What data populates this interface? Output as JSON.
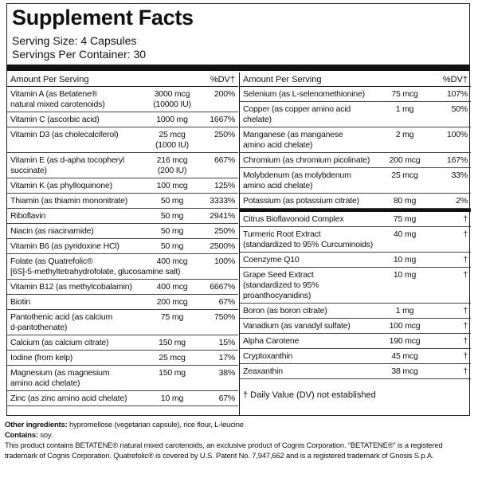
{
  "title": "Supplement Facts",
  "serving_size": "Serving Size: 4 Capsules",
  "servings_per_container": "Servings Per Container: 30",
  "left": {
    "header": [
      "Amount Per Serving",
      "%DV†"
    ],
    "rows": [
      {
        "name": [
          "Vitamin A (as Betatene®",
          "natural mixed carotenoids)"
        ],
        "amount": [
          "3000 mcg",
          "(10000 IU)"
        ],
        "dv": "200%"
      },
      {
        "name": [
          "Vitamin C (ascorbic acid)"
        ],
        "amount": [
          "1000 mg"
        ],
        "dv": "1667%"
      },
      {
        "name": [
          "Vitamin D3 (as cholecalciferol)"
        ],
        "amount": [
          "25 mcg",
          "(1000 IU)"
        ],
        "dv": "250%"
      },
      {
        "name": [
          "Vitamin E (as d-apha tocopheryl",
          "succinate)"
        ],
        "amount": [
          "216 mcg",
          "(200 IU)"
        ],
        "dv": "667%"
      },
      {
        "name": [
          "Vitamin K (as phylloquinone)"
        ],
        "amount": [
          "100 mcg"
        ],
        "dv": "125%"
      },
      {
        "name": [
          "Thiamin (as thiamin mononitrate)"
        ],
        "amount": [
          "50 mg"
        ],
        "dv": "3333%"
      },
      {
        "name": [
          "Riboflavin"
        ],
        "amount": [
          "50 mg"
        ],
        "dv": "2941%"
      },
      {
        "name": [
          "Niacin (as niacinamide)"
        ],
        "amount": [
          "50 mg"
        ],
        "dv": "250%"
      },
      {
        "name": [
          "Vitamin B6 (as pyridoxine HCl)"
        ],
        "amount": [
          "50 mg"
        ],
        "dv": "2500%"
      },
      {
        "name": [
          "Folate (as Quatrefolic®"
        ],
        "amount": [
          "400 mcg"
        ],
        "dv": "100%",
        "note": "[6S]-5-methyltetrahydrofolate, glucosamine salt)"
      },
      {
        "name": [
          "Vitamin B12 (as methylcobalamin)"
        ],
        "amount": [
          "400 mcg"
        ],
        "dv": "6667%"
      },
      {
        "name": [
          "Biotin"
        ],
        "amount": [
          "200 mcg"
        ],
        "dv": "67%"
      },
      {
        "name": [
          "Pantothenic acid (as calcium",
          "d-pantothenate)"
        ],
        "amount": [
          "75 mg"
        ],
        "dv": "750%"
      },
      {
        "name": [
          "Calcium (as calcium citrate)"
        ],
        "amount": [
          "150 mg"
        ],
        "dv": "15%"
      },
      {
        "name": [
          "Iodine (from kelp)"
        ],
        "amount": [
          "25 mcg"
        ],
        "dv": "17%"
      },
      {
        "name": [
          "Magnesium (as magnesium",
          "amino acid chelate)"
        ],
        "amount": [
          "150 mg"
        ],
        "dv": "38%"
      },
      {
        "name": [
          "Zinc (as zinc amino acid chelate)"
        ],
        "amount": [
          "10 mg"
        ],
        "dv": "67%"
      }
    ]
  },
  "right": {
    "header": [
      "Amount Per Serving",
      "%DV†"
    ],
    "rows": [
      {
        "name": [
          "Selenium (as L-selenomethionine)"
        ],
        "amount": [
          "75 mcg"
        ],
        "dv": "107%"
      },
      {
        "name": [
          "Copper (as copper amino acid chelate)"
        ],
        "amount": [
          "1 mg"
        ],
        "dv": "50%"
      },
      {
        "name": [
          "Manganese (as manganese",
          "amino acid chelate)"
        ],
        "amount": [
          "2 mg"
        ],
        "dv": "100%"
      },
      {
        "name": [
          "Chromium (as chromium picolinate)"
        ],
        "amount": [
          "200 mcg"
        ],
        "dv": "167%"
      },
      {
        "name": [
          "Molybdenum (as molybdenum",
          "amino acid chelate)"
        ],
        "amount": [
          "25 mcg"
        ],
        "dv": "33%"
      },
      {
        "name": [
          "Potassium (as potassium citrate)"
        ],
        "amount": [
          "80 mg"
        ],
        "dv": "2%"
      }
    ],
    "other_rows": [
      {
        "name": [
          "Citrus Bioflavonoid Complex"
        ],
        "amount": [
          "75 mg"
        ],
        "dv": "†"
      },
      {
        "name": [
          "Turmeric Root Extract",
          "(standardized to 95% Curcuminoids)"
        ],
        "amount": [
          "40 mg"
        ],
        "dv": "†"
      },
      {
        "name": [
          "Coenzyme Q10"
        ],
        "amount": [
          "10 mg"
        ],
        "dv": "†"
      },
      {
        "name": [
          "Grape Seed Extract",
          "(standardized to 95% proanthocyanidins)"
        ],
        "amount": [
          "10 mg"
        ],
        "dv": "†"
      },
      {
        "name": [
          "Boron (as boron citrate)"
        ],
        "amount": [
          "1 mg"
        ],
        "dv": "†"
      },
      {
        "name": [
          "Vanadium (as vanadyl sulfate)"
        ],
        "amount": [
          "100 mcg"
        ],
        "dv": "†"
      },
      {
        "name": [
          "Alpha Carotene"
        ],
        "amount": [
          "190 mcg"
        ],
        "dv": "†"
      },
      {
        "name": [
          "Cryptoxanthin"
        ],
        "amount": [
          "45 mcg"
        ],
        "dv": "†"
      },
      {
        "name": [
          "Zeaxanthin"
        ],
        "amount": [
          "38 mcg"
        ],
        "dv": "†"
      }
    ],
    "footnote": "† Daily Value (DV) not established"
  },
  "other_ingredients": {
    "label": "Other ingredients:",
    "text": "hypromellose (vegetarian capsule), rice flour, L-leucine"
  },
  "contains": {
    "label": "Contains:",
    "text": "soy."
  },
  "disclaimer": "This product contains BETATENE® natural mixed carotenoids, an exclusive product of Cognis Corporation. “BETATENE®” is a registered trademark of Cognis Corporation. Quatrefolic® is covered by U.S. Patent No. 7,947,662 and is a registered trademark of Gnosis S.p.A."
}
